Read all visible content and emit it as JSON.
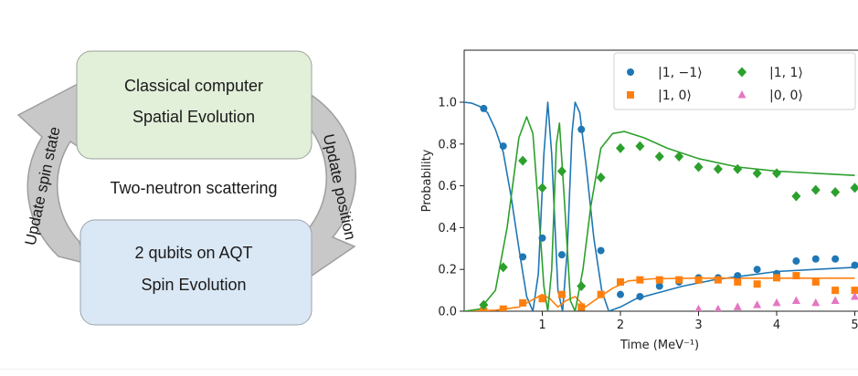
{
  "diagram": {
    "top_box": {
      "line1": "Classical computer",
      "line2": "Spatial Evolution",
      "color": "#e2efd9"
    },
    "bottom_box": {
      "line1": "2 qubits on AQT",
      "line2": "Spin Evolution",
      "color": "#dae8f5"
    },
    "center_label": "Two-neutron scattering",
    "left_arrow_label": "Update spin state",
    "right_arrow_label": "Update position",
    "arrow_color": "#c8c8c8"
  },
  "chart_data": {
    "type": "scatter",
    "xlabel": "Time (MeV⁻¹)",
    "ylabel": "Probability",
    "xlim": [
      0,
      5
    ],
    "ylim": [
      0,
      1.15
    ],
    "xticks": [
      "1",
      "2",
      "3",
      "4",
      "5"
    ],
    "yticks": [
      "0.0",
      "0.2",
      "0.4",
      "0.6",
      "0.8",
      "1.0"
    ],
    "legend_position": "top-right",
    "series": [
      {
        "name": "|1, −1⟩",
        "color": "#1f77b4",
        "marker": "circle",
        "points": [
          [
            0.25,
            0.97
          ],
          [
            0.5,
            0.79
          ],
          [
            0.75,
            0.26
          ],
          [
            1.0,
            0.35
          ],
          [
            1.25,
            0.27
          ],
          [
            1.5,
            0.87
          ],
          [
            1.75,
            0.29
          ],
          [
            2.0,
            0.08
          ],
          [
            2.25,
            0.07
          ],
          [
            2.5,
            0.12
          ],
          [
            2.75,
            0.14
          ],
          [
            3.0,
            0.16
          ],
          [
            3.25,
            0.16
          ],
          [
            3.5,
            0.17
          ],
          [
            3.75,
            0.2
          ],
          [
            4.0,
            0.18
          ],
          [
            4.25,
            0.24
          ],
          [
            4.5,
            0.25
          ],
          [
            4.75,
            0.25
          ],
          [
            5.0,
            0.22
          ]
        ],
        "curve": [
          [
            0,
            1.0
          ],
          [
            0.1,
            0.995
          ],
          [
            0.2,
            0.98
          ],
          [
            0.3,
            0.95
          ],
          [
            0.4,
            0.87
          ],
          [
            0.5,
            0.76
          ],
          [
            0.6,
            0.55
          ],
          [
            0.7,
            0.3
          ],
          [
            0.8,
            0.07
          ],
          [
            0.88,
            0.0
          ],
          [
            0.95,
            0.18
          ],
          [
            1.02,
            0.75
          ],
          [
            1.07,
            1.0
          ],
          [
            1.12,
            0.75
          ],
          [
            1.2,
            0.1
          ],
          [
            1.26,
            0.0
          ],
          [
            1.32,
            0.3
          ],
          [
            1.38,
            0.85
          ],
          [
            1.42,
            1.0
          ],
          [
            1.48,
            0.95
          ],
          [
            1.56,
            0.7
          ],
          [
            1.66,
            0.35
          ],
          [
            1.76,
            0.1
          ],
          [
            1.85,
            0.0
          ],
          [
            2.0,
            0.02
          ],
          [
            2.2,
            0.06
          ],
          [
            2.5,
            0.09
          ],
          [
            2.8,
            0.12
          ],
          [
            3.2,
            0.15
          ],
          [
            3.6,
            0.17
          ],
          [
            4.0,
            0.19
          ],
          [
            4.5,
            0.2
          ],
          [
            5.0,
            0.21
          ]
        ]
      },
      {
        "name": "|1, 0⟩",
        "color": "#ff7f0e",
        "marker": "square",
        "points": [
          [
            0.25,
            0.0
          ],
          [
            0.5,
            0.01
          ],
          [
            0.75,
            0.04
          ],
          [
            1.0,
            0.06
          ],
          [
            1.25,
            0.08
          ],
          [
            1.5,
            0.02
          ],
          [
            1.75,
            0.08
          ],
          [
            2.0,
            0.14
          ],
          [
            2.25,
            0.15
          ],
          [
            2.5,
            0.15
          ],
          [
            2.75,
            0.15
          ],
          [
            3.0,
            0.15
          ],
          [
            3.25,
            0.15
          ],
          [
            3.5,
            0.14
          ],
          [
            3.75,
            0.13
          ],
          [
            4.0,
            0.16
          ],
          [
            4.25,
            0.17
          ],
          [
            4.5,
            0.14
          ],
          [
            4.75,
            0.1
          ],
          [
            5.0,
            0.1
          ]
        ],
        "curve": [
          [
            0,
            0.0
          ],
          [
            0.4,
            0.005
          ],
          [
            0.7,
            0.02
          ],
          [
            0.9,
            0.06
          ],
          [
            1.0,
            0.08
          ],
          [
            1.1,
            0.06
          ],
          [
            1.2,
            0.02
          ],
          [
            1.3,
            0.05
          ],
          [
            1.42,
            0.07
          ],
          [
            1.55,
            0.02
          ],
          [
            1.7,
            0.06
          ],
          [
            1.9,
            0.11
          ],
          [
            2.1,
            0.145
          ],
          [
            2.4,
            0.155
          ],
          [
            3.0,
            0.158
          ],
          [
            4.0,
            0.158
          ],
          [
            5.0,
            0.158
          ]
        ]
      },
      {
        "name": "|1, 1⟩",
        "color": "#2ca02c",
        "marker": "diamond",
        "points": [
          [
            0.25,
            0.03
          ],
          [
            0.5,
            0.21
          ],
          [
            0.75,
            0.72
          ],
          [
            1.0,
            0.59
          ],
          [
            1.25,
            0.67
          ],
          [
            1.5,
            0.12
          ],
          [
            1.75,
            0.64
          ],
          [
            2.0,
            0.78
          ],
          [
            2.25,
            0.79
          ],
          [
            2.5,
            0.74
          ],
          [
            2.75,
            0.74
          ],
          [
            3.0,
            0.69
          ],
          [
            3.25,
            0.68
          ],
          [
            3.5,
            0.68
          ],
          [
            3.75,
            0.66
          ],
          [
            4.0,
            0.66
          ],
          [
            4.25,
            0.55
          ],
          [
            4.5,
            0.58
          ],
          [
            4.75,
            0.57
          ],
          [
            5.0,
            0.59
          ]
        ],
        "curve": [
          [
            0,
            0.0
          ],
          [
            0.2,
            0.01
          ],
          [
            0.4,
            0.1
          ],
          [
            0.55,
            0.4
          ],
          [
            0.7,
            0.83
          ],
          [
            0.8,
            0.93
          ],
          [
            0.88,
            0.85
          ],
          [
            0.95,
            0.5
          ],
          [
            1.02,
            0.12
          ],
          [
            1.07,
            0.0
          ],
          [
            1.12,
            0.2
          ],
          [
            1.18,
            0.8
          ],
          [
            1.22,
            0.9
          ],
          [
            1.28,
            0.55
          ],
          [
            1.36,
            0.05
          ],
          [
            1.42,
            0.0
          ],
          [
            1.52,
            0.2
          ],
          [
            1.62,
            0.5
          ],
          [
            1.75,
            0.78
          ],
          [
            1.9,
            0.85
          ],
          [
            2.05,
            0.86
          ],
          [
            2.3,
            0.83
          ],
          [
            2.6,
            0.78
          ],
          [
            3.0,
            0.73
          ],
          [
            3.5,
            0.69
          ],
          [
            4.0,
            0.67
          ],
          [
            4.5,
            0.66
          ],
          [
            5.0,
            0.65
          ]
        ]
      },
      {
        "name": "|0, 0⟩",
        "color": "#e377c2",
        "marker": "triangle",
        "points": [
          [
            3.0,
            0.01
          ],
          [
            3.25,
            0.01
          ],
          [
            3.5,
            0.02
          ],
          [
            3.75,
            0.03
          ],
          [
            4.0,
            0.04
          ],
          [
            4.25,
            0.05
          ],
          [
            4.5,
            0.04
          ],
          [
            4.75,
            0.05
          ],
          [
            5.0,
            0.07
          ]
        ],
        "curve": []
      }
    ]
  }
}
